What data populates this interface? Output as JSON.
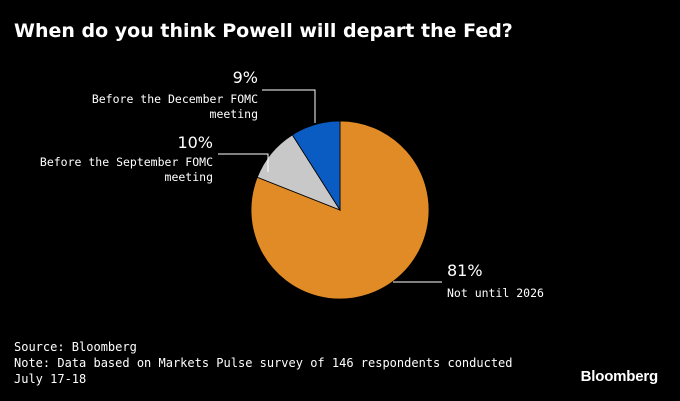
{
  "chart_data": {
    "type": "pie",
    "title": "When do you think Powell will depart the Fed?",
    "slices": [
      {
        "label_lines": [
          "Not until 2026"
        ],
        "value": 81,
        "value_label": "81%",
        "color": "#E08B26"
      },
      {
        "label_lines": [
          "Before the September FOMC",
          "meeting"
        ],
        "value": 10,
        "value_label": "10%",
        "color": "#C8C8C8"
      },
      {
        "label_lines": [
          "Before the December FOMC",
          "meeting"
        ],
        "value": 9,
        "value_label": "9%",
        "color": "#0A5CC2"
      }
    ]
  },
  "footer": {
    "source": "Source: Bloomberg",
    "note_line1": "Note: Data based on Markets Pulse survey of 146 respondents conducted",
    "note_line2": "July 17-18"
  },
  "brand": "Bloomberg"
}
